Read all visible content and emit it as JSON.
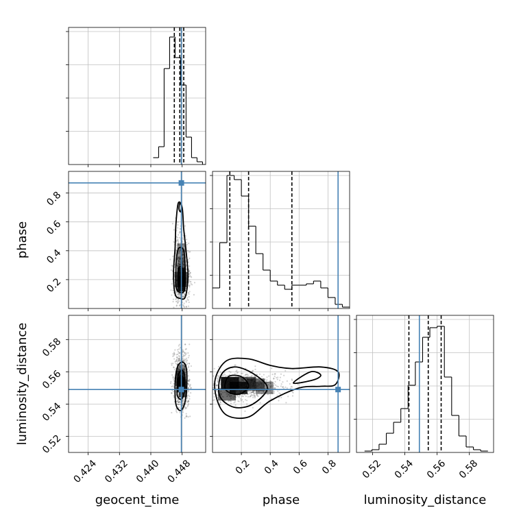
{
  "chart_data": {
    "type": "corner",
    "parameters": [
      "geocent_time",
      "phase",
      "luminosity_distance"
    ],
    "truths": {
      "geocent_time": 0.4478,
      "phase": 0.87,
      "luminosity_distance": 0.549
    },
    "colors": {
      "truth": "#4682b4",
      "hist": "#000000",
      "grid": "#c0c0c0"
    },
    "geocent_time": {
      "xlabel": "geocent_time",
      "xlim": [
        0.419,
        0.454
      ],
      "ticks": [
        0.424,
        0.432,
        0.44,
        0.448
      ],
      "tick_labels": [
        "0.424",
        "0.432",
        "0.440",
        "0.448"
      ],
      "hist_edges": [
        0.4406,
        0.442,
        0.4434,
        0.4448,
        0.4462,
        0.4476,
        0.449,
        0.4504,
        0.4518,
        0.4532,
        0.4546
      ],
      "hist_values": [
        0.05,
        0.13,
        0.7,
        0.93,
        0.78,
        0.58,
        0.2,
        0.05,
        0.02,
        0.0
      ],
      "quantiles": [
        0.446,
        0.4474,
        0.4484
      ]
    },
    "phase": {
      "xlabel": "phase",
      "ylabel": "phase",
      "xlim": [
        0.0,
        0.95
      ],
      "ticks": [
        0.2,
        0.4,
        0.6,
        0.8
      ],
      "tick_labels": [
        "0.2",
        "0.4",
        "0.6",
        "0.8"
      ],
      "hist_edges": [
        0.0,
        0.05,
        0.1,
        0.15,
        0.2,
        0.25,
        0.3,
        0.35,
        0.4,
        0.45,
        0.5,
        0.55,
        0.6,
        0.65,
        0.7,
        0.75,
        0.8,
        0.85,
        0.9,
        0.95
      ],
      "hist_values": [
        0.15,
        0.48,
        0.97,
        0.94,
        0.82,
        0.6,
        0.4,
        0.28,
        0.2,
        0.17,
        0.14,
        0.17,
        0.17,
        0.18,
        0.2,
        0.15,
        0.08,
        0.03,
        0.01
      ],
      "quantiles": [
        0.12,
        0.25,
        0.55
      ]
    },
    "luminosity_distance": {
      "xlabel": "luminosity_distance",
      "ylabel": "luminosity_distance",
      "xlim": [
        0.51,
        0.595
      ],
      "ticks": [
        0.52,
        0.54,
        0.56,
        0.58
      ],
      "tick_labels": [
        "0.52",
        "0.54",
        "0.56",
        "0.58"
      ],
      "hist_edges": [
        0.515,
        0.5195,
        0.524,
        0.5285,
        0.533,
        0.5375,
        0.542,
        0.5465,
        0.551,
        0.5555,
        0.56,
        0.5645,
        0.569,
        0.5735,
        0.578,
        0.5825,
        0.587,
        0.5915
      ],
      "hist_values": [
        0.01,
        0.02,
        0.06,
        0.14,
        0.22,
        0.32,
        0.49,
        0.66,
        0.84,
        0.91,
        0.92,
        0.55,
        0.27,
        0.12,
        0.04,
        0.02,
        0.01
      ],
      "quantiles": [
        0.5425,
        0.5545,
        0.5625
      ]
    },
    "contours": {
      "phase_vs_geocent_time": [
        {
          "points": [
            [
              0.4462,
              0.1
            ],
            [
              0.4475,
              0.07
            ],
            [
              0.4488,
              0.08
            ],
            [
              0.4495,
              0.22
            ],
            [
              0.449,
              0.4
            ],
            [
              0.4484,
              0.55
            ],
            [
              0.448,
              0.7
            ],
            [
              0.447,
              0.73
            ],
            [
              0.4464,
              0.58
            ],
            [
              0.4462,
              0.42
            ],
            [
              0.4458,
              0.25
            ]
          ]
        },
        {
          "points": [
            [
              0.4465,
              0.14
            ],
            [
              0.4476,
              0.11
            ],
            [
              0.4486,
              0.13
            ],
            [
              0.4488,
              0.25
            ],
            [
              0.4484,
              0.4
            ],
            [
              0.4472,
              0.42
            ],
            [
              0.4466,
              0.36
            ],
            [
              0.4464,
              0.25
            ]
          ]
        },
        {
          "points": [
            [
              0.447,
              0.18
            ],
            [
              0.4478,
              0.16
            ],
            [
              0.4484,
              0.19
            ],
            [
              0.4482,
              0.27
            ],
            [
              0.4474,
              0.29
            ],
            [
              0.447,
              0.25
            ]
          ]
        },
        {
          "points": [
            [
              0.4472,
              0.69
            ],
            [
              0.4476,
              0.67
            ],
            [
              0.4478,
              0.71
            ],
            [
              0.4474,
              0.73
            ]
          ]
        }
      ],
      "luminosity_distance_vs_geocent_time": [
        {
          "points": [
            [
              0.4464,
              0.54
            ],
            [
              0.4476,
              0.536
            ],
            [
              0.4487,
              0.541
            ],
            [
              0.4492,
              0.553
            ],
            [
              0.449,
              0.563
            ],
            [
              0.448,
              0.566
            ],
            [
              0.4468,
              0.563
            ],
            [
              0.4462,
              0.553
            ]
          ]
        },
        {
          "points": [
            [
              0.4468,
              0.545
            ],
            [
              0.4478,
              0.543
            ],
            [
              0.4486,
              0.548
            ],
            [
              0.4487,
              0.557
            ],
            [
              0.448,
              0.561
            ],
            [
              0.447,
              0.558
            ],
            [
              0.4467,
              0.551
            ]
          ]
        },
        {
          "points": [
            [
              0.4472,
              0.549
            ],
            [
              0.4479,
              0.548
            ],
            [
              0.4483,
              0.552
            ],
            [
              0.4481,
              0.557
            ],
            [
              0.4474,
              0.557
            ],
            [
              0.4471,
              0.553
            ]
          ]
        }
      ],
      "luminosity_distance_vs_phase": [
        {
          "points": [
            [
              0.03,
              0.543
            ],
            [
              0.1,
              0.533
            ],
            [
              0.25,
              0.532
            ],
            [
              0.4,
              0.542
            ],
            [
              0.6,
              0.55
            ],
            [
              0.75,
              0.551
            ],
            [
              0.85,
              0.552
            ],
            [
              0.87,
              0.56
            ],
            [
              0.75,
              0.563
            ],
            [
              0.55,
              0.562
            ],
            [
              0.4,
              0.564
            ],
            [
              0.25,
              0.568
            ],
            [
              0.1,
              0.567
            ],
            [
              0.02,
              0.556
            ]
          ]
        },
        {
          "points": [
            [
              0.05,
              0.545
            ],
            [
              0.15,
              0.538
            ],
            [
              0.28,
              0.54
            ],
            [
              0.38,
              0.55
            ],
            [
              0.28,
              0.559
            ],
            [
              0.15,
              0.563
            ],
            [
              0.06,
              0.558
            ]
          ]
        },
        {
          "points": [
            [
              0.09,
              0.549
            ],
            [
              0.18,
              0.546
            ],
            [
              0.25,
              0.551
            ],
            [
              0.2,
              0.557
            ],
            [
              0.11,
              0.557
            ]
          ]
        },
        {
          "points": [
            [
              0.56,
              0.553
            ],
            [
              0.7,
              0.555
            ],
            [
              0.75,
              0.558
            ],
            [
              0.68,
              0.56
            ]
          ]
        }
      ]
    },
    "density": {
      "phase_vs_geocent_time": [
        {
          "x": 0.4478,
          "y": 0.17,
          "level": 1.0
        },
        {
          "x": 0.4478,
          "y": 0.23,
          "level": 0.8
        },
        {
          "x": 0.4478,
          "y": 0.3,
          "level": 0.5
        },
        {
          "x": 0.4472,
          "y": 0.2,
          "level": 0.6
        },
        {
          "x": 0.4484,
          "y": 0.2,
          "level": 0.55
        },
        {
          "x": 0.4478,
          "y": 0.4,
          "level": 0.3
        }
      ],
      "luminosity_distance_vs_geocent_time": [
        {
          "x": 0.4478,
          "y": 0.552,
          "level": 1.0
        },
        {
          "x": 0.4474,
          "y": 0.556,
          "level": 0.6
        },
        {
          "x": 0.4482,
          "y": 0.549,
          "level": 0.6
        },
        {
          "x": 0.4478,
          "y": 0.56,
          "level": 0.35
        }
      ],
      "luminosity_distance_vs_phase": [
        {
          "x": 0.12,
          "y": 0.553,
          "level": 1.0
        },
        {
          "x": 0.18,
          "y": 0.55,
          "level": 0.85
        },
        {
          "x": 0.24,
          "y": 0.553,
          "level": 0.6
        },
        {
          "x": 0.3,
          "y": 0.552,
          "level": 0.45
        },
        {
          "x": 0.36,
          "y": 0.55,
          "level": 0.3
        },
        {
          "x": 0.1,
          "y": 0.546,
          "level": 0.5
        }
      ]
    }
  }
}
